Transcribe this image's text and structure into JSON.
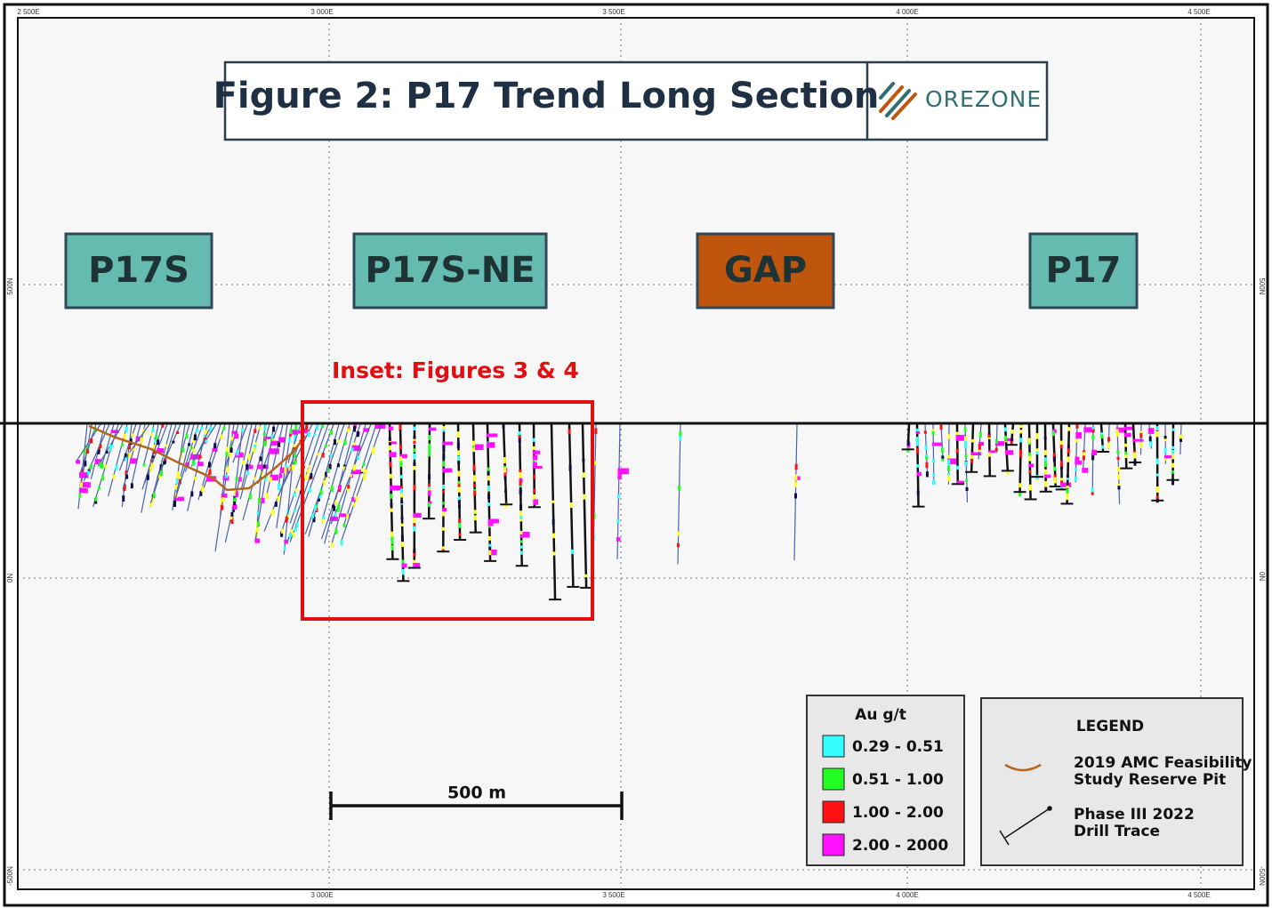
{
  "header": {
    "title": "Figure 2: P17 Trend Long Section",
    "logo": "OREZONE"
  },
  "axes": {
    "top": [
      "2 500E",
      "3 000E",
      "3 500E",
      "4 000E",
      "4 500E"
    ],
    "bottom": [
      "3 000E",
      "3 500E",
      "4 000E",
      "4 500E"
    ],
    "left": [
      "500N",
      "0N",
      "-500N"
    ],
    "right": [
      "500N",
      "0N",
      "-500N"
    ]
  },
  "zones": [
    {
      "label": "P17S",
      "color": "#66bbb0"
    },
    {
      "label": "P17S-NE",
      "color": "#66bbb0"
    },
    {
      "label": "GAP",
      "color": "#c0560d"
    },
    {
      "label": "P17",
      "color": "#66bbb0"
    }
  ],
  "inset": "Inset: Figures 3 & 4",
  "scale_bar": "500 m",
  "grade_legend": {
    "title": "Au g/t",
    "items": [
      {
        "label": "0.29 - 0.51",
        "color": "#33ffff"
      },
      {
        "label": "0.51 - 1.00",
        "color": "#22ff22"
      },
      {
        "label": "1.00 - 2.00",
        "color": "#ff1111"
      },
      {
        "label": "2.00 - 2000",
        "color": "#ff11ff"
      }
    ]
  },
  "legend": {
    "title": "LEGEND",
    "items": [
      {
        "lines": [
          "2019 AMC Feasibility",
          "Study Reserve Pit"
        ]
      },
      {
        "lines": [
          "Phase III 2022",
          "Drill Trace"
        ]
      }
    ]
  }
}
